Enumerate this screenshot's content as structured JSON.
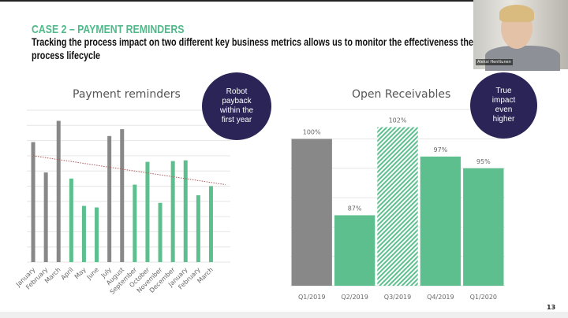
{
  "slide": {
    "title": "CASE 2 – PAYMENT REMINDERS",
    "subtitle": "Tracking the process impact on two different key business metrics allows us to monitor the effectiveness the process lifecycle",
    "page_number": "13",
    "callout_left": "Robot payback within the first year",
    "callout_right": "True impact even higher",
    "participant_name": "Aleksi Henttunen"
  },
  "colors": {
    "accent": "#4fb98a",
    "bar_green": "#5dbf8e",
    "bar_gray": "#888888",
    "callout": "#2b2557",
    "trend": "#b05a5a"
  },
  "chart_data": [
    {
      "type": "bar",
      "title": "Payment reminders",
      "categories": [
        "January",
        "February",
        "March",
        "April",
        "May",
        "June",
        "July",
        "August",
        "September",
        "October",
        "November",
        "December",
        "January",
        "February",
        "March"
      ],
      "values": [
        7.9,
        5.9,
        9.3,
        5.5,
        3.7,
        3.6,
        8.3,
        8.75,
        5.1,
        6.6,
        3.9,
        6.65,
        6.7,
        4.4,
        5.0
      ],
      "bar_colors": [
        "gray",
        "gray",
        "gray",
        "green",
        "green",
        "green",
        "gray",
        "gray",
        "green",
        "green",
        "green",
        "green",
        "green",
        "green",
        "green"
      ],
      "trendline": {
        "start": 7.0,
        "end": 5.1,
        "style": "dotted"
      },
      "ylim": [
        0,
        10
      ],
      "y_tick_labels": false,
      "grid": true
    },
    {
      "type": "bar",
      "title": "Open Receivables",
      "categories": [
        "Q1/2019",
        "Q2/2019",
        "Q3/2019",
        "Q4/2019",
        "Q1/2020"
      ],
      "values": [
        100,
        87,
        102,
        97,
        95
      ],
      "data_labels": [
        "100%",
        "87%",
        "102%",
        "97%",
        "95%"
      ],
      "bar_colors": [
        "gray",
        "green",
        "hatched-green",
        "green",
        "green"
      ],
      "ylim": [
        75,
        105
      ],
      "grid": true
    }
  ]
}
